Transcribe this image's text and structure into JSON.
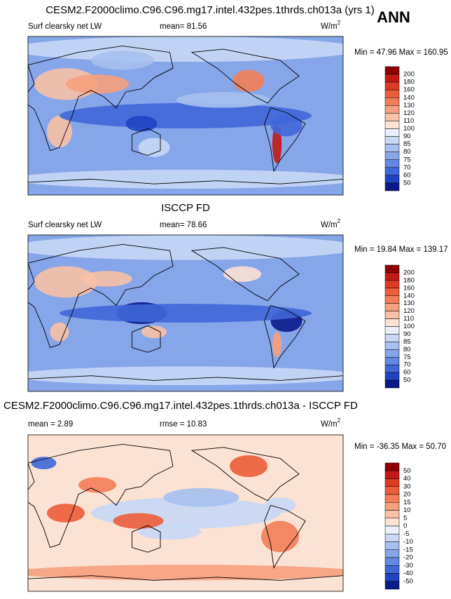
{
  "season": "ANN",
  "panels": [
    {
      "title": "CESM2.F2000climo.C96.C96.mg17.intel.432pes.1thrds.ch013a (yrs 1)",
      "left_label": "Surf clearsky net LW",
      "mean_label": "mean=  81.56",
      "units": {
        "base": "W/m",
        "sup": "2"
      },
      "min_max": "Min =  47.96 Max = 160.95",
      "colorbar": {
        "levels": [
          200,
          180,
          160,
          140,
          130,
          120,
          110,
          100,
          90,
          85,
          80,
          75,
          70,
          60,
          50
        ],
        "colors": [
          "#8e0000",
          "#c41a14",
          "#dd3a22",
          "#ec5d3a",
          "#f27e57",
          "#f6a07d",
          "#f9c1a5",
          "#fce2d3",
          "#e9eefb",
          "#c8d8f6",
          "#a6c0f0",
          "#86a6ea",
          "#6388e2",
          "#3f67d8",
          "#1f43c4",
          "#0b1a8a"
        ]
      }
    },
    {
      "title": "ISCCP FD",
      "left_label": "Surf clearsky net LW",
      "mean_label": "mean=  78.66",
      "units": {
        "base": "W/m",
        "sup": "2"
      },
      "min_max": "Min =  19.84 Max = 139.17",
      "colorbar": {
        "levels": [
          200,
          180,
          160,
          140,
          130,
          120,
          110,
          100,
          90,
          85,
          80,
          75,
          70,
          60,
          50
        ],
        "colors": [
          "#8e0000",
          "#c41a14",
          "#dd3a22",
          "#ec5d3a",
          "#f27e57",
          "#f6a07d",
          "#f9c1a5",
          "#fce2d3",
          "#e9eefb",
          "#c8d8f6",
          "#a6c0f0",
          "#86a6ea",
          "#6388e2",
          "#3f67d8",
          "#1f43c4",
          "#0b1a8a"
        ]
      }
    },
    {
      "title": "CESM2.F2000climo.C96.C96.mg17.intel.432pes.1thrds.ch013a - ISCCP FD",
      "left_label": "mean =  2.89",
      "mean_label": "rmse =  10.83",
      "units": {
        "base": "W/m",
        "sup": "2"
      },
      "min_max": "Min = -36.35 Max =  50.70",
      "colorbar": {
        "levels": [
          50,
          40,
          30,
          20,
          15,
          10,
          5,
          0,
          -5,
          -10,
          -15,
          -20,
          -30,
          -40,
          -50
        ],
        "colors": [
          "#8e0000",
          "#c41a14",
          "#dd3a22",
          "#ec5d3a",
          "#f27e57",
          "#f6a07d",
          "#f9c1a5",
          "#fce2d3",
          "#e9eefb",
          "#c8d8f6",
          "#a6c0f0",
          "#86a6ea",
          "#6388e2",
          "#3f67d8",
          "#1f43c4",
          "#0b1a8a"
        ]
      }
    }
  ]
}
